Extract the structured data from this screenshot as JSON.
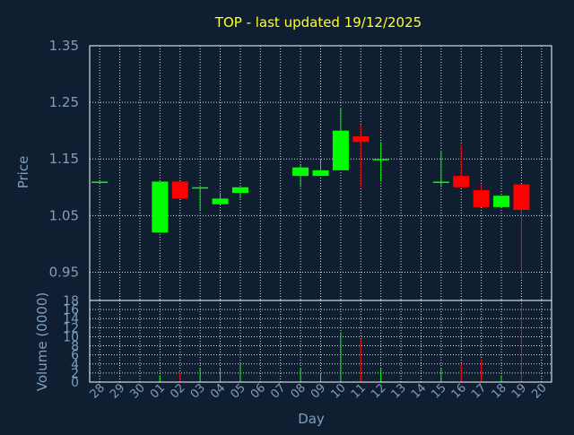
{
  "chart_data": [
    {
      "type": "candlestick",
      "title": "TOP - last updated 19/12/2025",
      "ylabel": "Price",
      "ylim": [
        0.9,
        1.35
      ],
      "yticks": [
        "1.35",
        "1.25",
        "1.15",
        "1.05",
        "0.95"
      ],
      "grid": true,
      "up_color": "#00ff00",
      "down_color": "#ff0000",
      "categories": [
        "28",
        "29",
        "30",
        "01",
        "02",
        "03",
        "04",
        "05",
        "06",
        "07",
        "08",
        "09",
        "10",
        "11",
        "12",
        "13",
        "14",
        "15",
        "16",
        "17",
        "18",
        "19",
        "20"
      ],
      "candles": [
        {
          "x": "28",
          "open": 1.11,
          "close": 1.11,
          "high": 1.11,
          "low": 1.11
        },
        {
          "x": "01",
          "open": 1.02,
          "close": 1.11,
          "high": 1.11,
          "low": 1.02
        },
        {
          "x": "02",
          "open": 1.11,
          "close": 1.08,
          "high": 1.11,
          "low": 1.08
        },
        {
          "x": "03",
          "open": 1.1,
          "close": 1.1,
          "high": 1.1,
          "low": 1.06
        },
        {
          "x": "04",
          "open": 1.07,
          "close": 1.08,
          "high": 1.09,
          "low": 1.07
        },
        {
          "x": "05",
          "open": 1.09,
          "close": 1.1,
          "high": 1.1,
          "low": 1.08
        },
        {
          "x": "08",
          "open": 1.12,
          "close": 1.135,
          "high": 1.14,
          "low": 1.1
        },
        {
          "x": "09",
          "open": 1.12,
          "close": 1.13,
          "high": 1.15,
          "low": 1.12
        },
        {
          "x": "10",
          "open": 1.13,
          "close": 1.2,
          "high": 1.24,
          "low": 1.13
        },
        {
          "x": "11",
          "open": 1.19,
          "close": 1.18,
          "high": 1.21,
          "low": 1.1
        },
        {
          "x": "12",
          "open": 1.15,
          "close": 1.15,
          "high": 1.18,
          "low": 1.11
        },
        {
          "x": "15",
          "open": 1.11,
          "close": 1.11,
          "high": 1.165,
          "low": 1.1
        },
        {
          "x": "16",
          "open": 1.12,
          "close": 1.1,
          "high": 1.175,
          "low": 1.1
        },
        {
          "x": "17",
          "open": 1.095,
          "close": 1.065,
          "high": 1.105,
          "low": 1.065
        },
        {
          "x": "18",
          "open": 1.065,
          "close": 1.085,
          "high": 1.085,
          "low": 1.065
        },
        {
          "x": "19",
          "open": 1.105,
          "close": 1.06,
          "high": 1.105,
          "low": 0.94
        }
      ]
    },
    {
      "type": "bar",
      "ylabel": "Volume (0000)",
      "xlabel": "Day",
      "ylim": [
        0,
        18
      ],
      "yticks": [
        "18",
        "16",
        "14",
        "12",
        "10",
        "8",
        "6",
        "4",
        "2",
        "0"
      ],
      "grid": true,
      "categories": [
        "28",
        "29",
        "30",
        "01",
        "02",
        "03",
        "04",
        "05",
        "06",
        "07",
        "08",
        "09",
        "10",
        "11",
        "12",
        "13",
        "14",
        "15",
        "16",
        "17",
        "18",
        "19",
        "20"
      ],
      "bars": [
        {
          "x": "01",
          "value": 1.5,
          "color": "#00ff00"
        },
        {
          "x": "02",
          "value": 2.0,
          "color": "#ff0000"
        },
        {
          "x": "03",
          "value": 3.0,
          "color": "#00ff00"
        },
        {
          "x": "04",
          "value": 3.0,
          "color": "#00ff00"
        },
        {
          "x": "05",
          "value": 4.0,
          "color": "#00ff00"
        },
        {
          "x": "08",
          "value": 3.0,
          "color": "#00ff00"
        },
        {
          "x": "09",
          "value": 2.0,
          "color": "#00ff00"
        },
        {
          "x": "10",
          "value": 11.0,
          "color": "#00ff00"
        },
        {
          "x": "11",
          "value": 9.5,
          "color": "#ff0000"
        },
        {
          "x": "12",
          "value": 3.0,
          "color": "#00ff00"
        },
        {
          "x": "15",
          "value": 3.0,
          "color": "#00ff00"
        },
        {
          "x": "16",
          "value": 4.0,
          "color": "#ff0000"
        },
        {
          "x": "17",
          "value": 5.0,
          "color": "#ff0000"
        },
        {
          "x": "18",
          "value": 1.5,
          "color": "#00ff00"
        },
        {
          "x": "19",
          "value": 17.0,
          "color": "#ff0000"
        }
      ]
    }
  ]
}
